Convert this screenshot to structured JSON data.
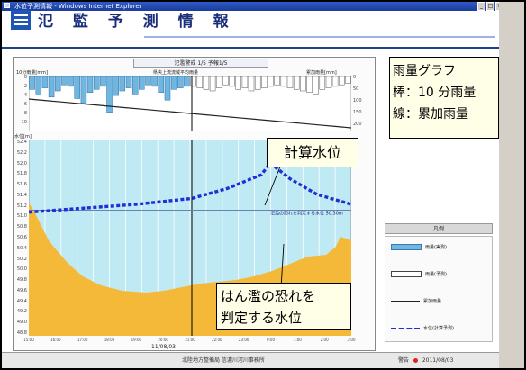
{
  "window": {
    "title": "水位予測情報 - Windows Internet Explorer",
    "controls": [
      "_",
      "□",
      "×"
    ]
  },
  "app": {
    "title": "氾 監 予 測 情 報"
  },
  "chart_header": "氾濫警戒 1/5 予報1/5",
  "rain_panel": {
    "left_label": "10分雨量[mm]",
    "center_label": "県央上流流域平均雨量",
    "right_label": "累加雨量[mm]"
  },
  "level_panel": {
    "label": "水位[m]"
  },
  "chart_data": {
    "type": "bar",
    "rain_10min_observed": [
      9,
      12,
      8,
      14,
      10,
      6,
      7,
      15,
      18,
      11,
      9,
      7,
      24,
      13,
      10,
      8,
      12,
      9,
      6,
      7,
      11,
      16,
      9,
      8,
      7
    ],
    "rain_10min_forecast": [
      7,
      8,
      9,
      10,
      8,
      6,
      7,
      9,
      8,
      10,
      9,
      8,
      7,
      6,
      7,
      8,
      9,
      10,
      11,
      12,
      9,
      8,
      7,
      6,
      5
    ],
    "level_y_ticks": [
      "52.4",
      "52.2",
      "52.0",
      "51.8",
      "51.6",
      "51.4",
      "51.2",
      "51.0",
      "50.8",
      "50.6",
      "50.4",
      "50.2",
      "50.0",
      "49.8",
      "49.6",
      "49.4",
      "49.2",
      "49.0",
      "48.8"
    ],
    "x_ticks": [
      "15:00",
      "16:00",
      "17:00",
      "18:00",
      "19:00",
      "20:00",
      "21:00",
      "22:00",
      "23:00",
      "0:00",
      "1:00",
      "2:00",
      "3:00"
    ],
    "x_date": "11/08/03",
    "observed_level_line": [
      0.37,
      0.37,
      0.37,
      0.37,
      0.37,
      0.36,
      0.36,
      0.36,
      0.35,
      0.35
    ],
    "calc_level": [
      0.37,
      0.35,
      0.33,
      0.3,
      0.25,
      0.18,
      0.12,
      0.2,
      0.28,
      0.33
    ],
    "risk_threshold": 0.36,
    "threshold_label": "氾濫の恐れを判定する水位 50.30m"
  },
  "callouts": {
    "rain": [
      "雨量グラフ",
      "棒：10 分雨量",
      "線：累加雨量"
    ],
    "calc": "計算水位",
    "risk": [
      "はん濫の恐れを",
      "判定する水位"
    ]
  },
  "legend": {
    "title": "凡例",
    "items": [
      "雨量(実測)",
      "雨量(予測)",
      "累加雨量",
      "水位(計算予測)"
    ],
    "colors": [
      "#6fb6e0",
      "#ffffff",
      "#222222",
      "#1f2fd6"
    ]
  },
  "status_bar": {
    "center": "北陸地方整備局 信濃川河川事務所",
    "right_label": "警告",
    "right_info": "2011/08/03"
  }
}
